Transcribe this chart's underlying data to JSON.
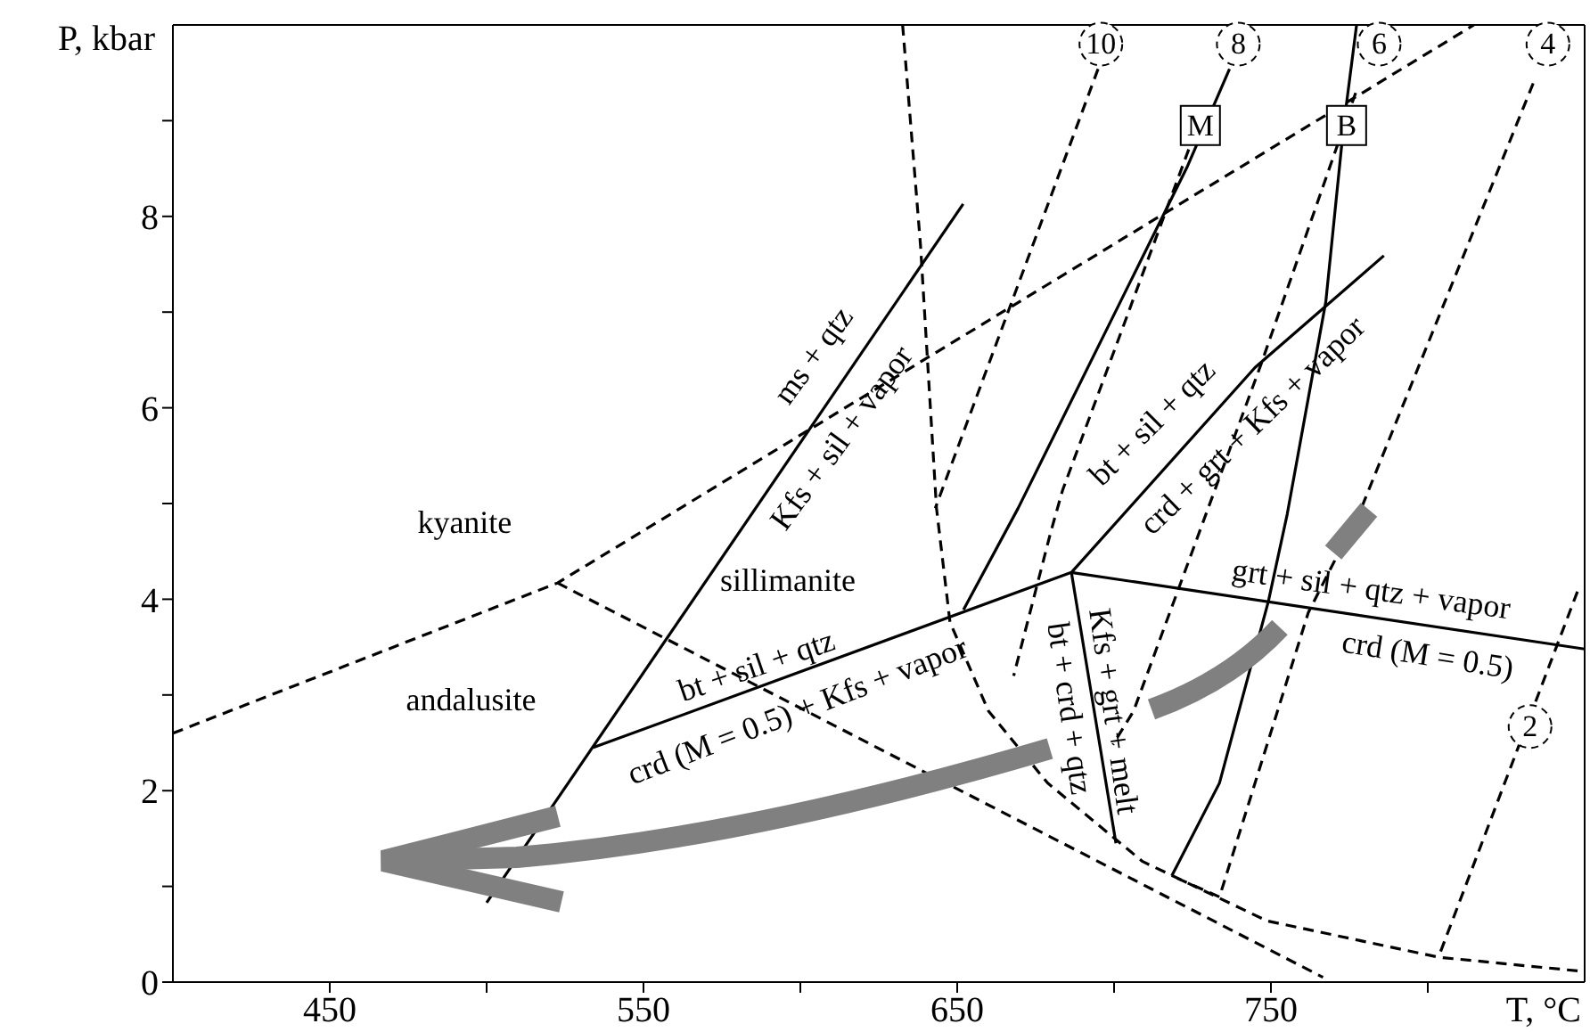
{
  "chart_data": {
    "type": "line",
    "xlabel": "T, °C",
    "ylabel": "P, kbar",
    "xlim": [
      400,
      850
    ],
    "ylim": [
      0,
      10
    ],
    "xticks": [
      450,
      {
        "value": 500,
        "label": null
      },
      550,
      {
        "value": 600,
        "label": null
      },
      650,
      {
        "value": 700,
        "label": null
      },
      750,
      {
        "value": 800,
        "label": null
      }
    ],
    "yticks": [
      0,
      {
        "value": 1,
        "label": null
      },
      2,
      {
        "value": 3,
        "label": null
      },
      4,
      {
        "value": 5,
        "label": null
      },
      6,
      {
        "value": 7,
        "label": null
      },
      8,
      {
        "value": 9,
        "label": null
      }
    ],
    "series": [
      {
        "color": "#000000",
        "line_style": "dashed",
        "x": [
          400,
          522.6,
          814.7
        ],
        "values": [
          2.6,
          4.17,
          10
        ]
      },
      {
        "color": "#000000",
        "line_style": "dashed",
        "x": [
          522.6,
          766.6
        ],
        "values": [
          4.17,
          0.05
        ]
      },
      {
        "color": "#000000",
        "line_style": "solid",
        "x": [
          500,
          651.9
        ],
        "values": [
          0.83,
          8.13
        ]
      },
      {
        "color": "#000000",
        "line_style": "solid",
        "x": [
          534,
          686.4,
          744.9,
          786
        ],
        "values": [
          2.45,
          4.28,
          6.42,
          7.59
        ]
      },
      {
        "color": "#000000",
        "line_style": "solid",
        "x": [
          652,
          669.4,
          723.2,
          736.8
        ],
        "values": [
          3.89,
          4.95,
          8.51,
          9.54
        ]
      },
      {
        "color": "#000000",
        "line_style": "solid",
        "x": [
          686.4,
          700.6
        ],
        "values": [
          4.28,
          1.45
        ]
      },
      {
        "color": "#000000",
        "line_style": "solid",
        "x": [
          686.4,
          850
        ],
        "values": [
          4.28,
          3.48
        ]
      },
      {
        "color": "#000000",
        "line_style": "solid",
        "x": [
          718.4,
          733.6,
          749.2,
          755.2,
          767.5,
          773.2,
          777.3
        ],
        "values": [
          1.11,
          2.08,
          3.98,
          4.89,
          7.11,
          8.95,
          10
        ]
      },
      {
        "color": "#000000",
        "line_style": "dashed",
        "x": [
          632.6,
          638.3,
          643.4,
          647.7,
          660,
          678.8,
          709.1,
          748.7,
          803.4,
          850
        ],
        "values": [
          10,
          7.7,
          4.95,
          3.76,
          2.83,
          2.08,
          1.26,
          0.64,
          0.26,
          0.11
        ]
      },
      {
        "color": "#000000",
        "line_style": "dashed",
        "x": [
          694.9,
          643
        ],
        "values": [
          9.54,
          4.95
        ]
      },
      {
        "color": "#000000",
        "line_style": "dashed",
        "x": [
          723.8,
          683.6,
          679.8,
          668
        ],
        "values": [
          8.7,
          5.14,
          4.7,
          3.2
        ]
      },
      {
        "color": "#000000",
        "line_style": "dashed",
        "x": [
          777,
          746.8,
          706.2,
          699.6
        ],
        "values": [
          9.29,
          6.45,
          2.83,
          2.48
        ]
      },
      {
        "color": "#000000",
        "line_style": "dashed",
        "x": [
          833.6,
          778.8,
          761.9,
          733.6,
          718.4
        ],
        "values": [
          9.39,
          4.95,
          3.86,
          0.89,
          1.11
        ]
      },
      {
        "color": "#000000",
        "line_style": "dashed",
        "x": [
          847.7,
          803.4
        ],
        "values": [
          4.08,
          0.26
        ]
      }
    ],
    "annotations": [
      "kyanite",
      "sillimanite",
      "andalusite",
      "ms + qtz",
      "Kfs + sil + vapor",
      "bt + sil + qtz",
      "crd (M = 0.5) + Kfs + vapor",
      "bt + sil + qtz",
      "crd + grt + Kfs + vapor",
      "grt + sil + qtz + vapor",
      "crd (M = 0.5)",
      "bt + crd + qtz",
      "Kfs + grt + melt",
      {
        "text": "M",
        "x": 727.5,
        "y": 8.95
      },
      {
        "text": "B",
        "x": 774.1,
        "y": 8.95
      },
      {
        "text": "10",
        "x": 695.8,
        "y": 9.8
      },
      {
        "text": "8",
        "x": 739.6,
        "y": 9.8
      },
      {
        "text": "6",
        "x": 784.5,
        "y": 9.8
      },
      {
        "text": "4",
        "x": 838.3,
        "y": 9.8
      },
      {
        "text": "2",
        "x": 832.6,
        "y": 2.67
      }
    ]
  }
}
